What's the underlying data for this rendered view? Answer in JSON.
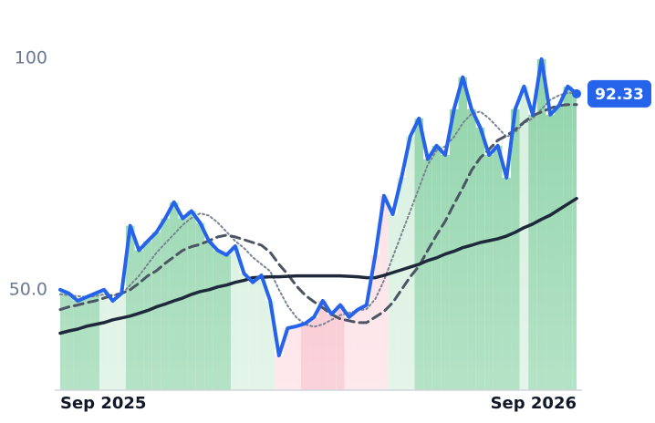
{
  "chart_data": {
    "type": "line",
    "categories": [
      "Sep 2025",
      null,
      null,
      null,
      null,
      null,
      null,
      null,
      null,
      null,
      null,
      null,
      null,
      null,
      null,
      null,
      null,
      null,
      null,
      null,
      null,
      null,
      null,
      null,
      null,
      null,
      null,
      null,
      null,
      null,
      null,
      null,
      null,
      null,
      null,
      null,
      null,
      null,
      null,
      null,
      null,
      null,
      null,
      null,
      null,
      null,
      null,
      null,
      null,
      null,
      null,
      null,
      null,
      null,
      null,
      null,
      null,
      null,
      null,
      "Sep 2026"
    ],
    "series": [
      {
        "color": "#2563eb",
        "style": "solid",
        "width": 4,
        "area": true,
        "values": [
          50,
          49.2,
          47.6,
          48.4,
          49.2,
          50,
          47.6,
          49.2,
          63.8,
          58.5,
          60.5,
          62.4,
          65.4,
          68.9,
          65.4,
          67,
          64.4,
          60.5,
          58.5,
          57.5,
          59.4,
          53.5,
          51.6,
          53.1,
          47.6,
          35.8,
          41.7,
          42.1,
          42.7,
          44.1,
          47.6,
          44.7,
          46.7,
          44.1,
          45.7,
          46.7,
          57.5,
          70.3,
          66.3,
          74.2,
          83.1,
          87,
          78.2,
          81.1,
          79.1,
          89,
          95.9,
          89,
          85,
          79.1,
          81.1,
          74.2,
          89,
          93.9,
          87.8,
          99.8,
          87.8,
          89.8,
          93.9,
          92.33
        ]
      },
      {
        "color": "#7b8494",
        "style": "dotted",
        "width": 2,
        "values": [
          49,
          48.8,
          48.6,
          48.4,
          48.6,
          49,
          48.8,
          49,
          51,
          53,
          55.5,
          58,
          60,
          62,
          64,
          65.5,
          66.5,
          66,
          64.5,
          62.5,
          60.5,
          59,
          57,
          55.5,
          54,
          50,
          46.5,
          44,
          42.5,
          42,
          42.5,
          43.5,
          44.5,
          45,
          45.5,
          45.8,
          48,
          52,
          57,
          62,
          67,
          72,
          77,
          80,
          81,
          83,
          86,
          88,
          88.5,
          87,
          85,
          83,
          84,
          86,
          87,
          89,
          91,
          92,
          92.5,
          92.5
        ]
      },
      {
        "color": "#4b5563",
        "style": "dashed",
        "width": 3,
        "values": [
          45.7,
          46.3,
          46.7,
          47.2,
          47.6,
          48.2,
          48.8,
          49.2,
          50,
          51.4,
          53,
          54.1,
          55.7,
          57.1,
          58.5,
          59.3,
          59.8,
          60.6,
          61.4,
          61.8,
          61.4,
          60.8,
          60.2,
          59.6,
          58.1,
          55.5,
          53.3,
          50.8,
          48.8,
          47.4,
          46.1,
          44.7,
          43.7,
          43.3,
          42.9,
          42.9,
          44.1,
          45.3,
          47.2,
          50,
          52.8,
          55.1,
          58.5,
          61.8,
          64.8,
          68.5,
          72,
          75.8,
          78.5,
          80.3,
          82.3,
          83.3,
          84.6,
          86.2,
          87.6,
          88.4,
          89.2,
          89.8,
          90,
          90
        ]
      },
      {
        "color": "#1e293b",
        "style": "solid",
        "width": 3.5,
        "values": [
          40.6,
          41.1,
          41.5,
          42.1,
          42.5,
          42.9,
          43.5,
          43.9,
          44.3,
          44.9,
          45.5,
          46.3,
          46.9,
          47.6,
          48.2,
          49,
          49.6,
          50,
          50.6,
          51,
          51.6,
          52,
          52.6,
          52.7,
          52.8,
          52.8,
          52.9,
          53,
          53,
          53,
          53,
          53,
          53,
          52.9,
          52.8,
          52.6,
          52.6,
          53.1,
          53.7,
          54.3,
          54.9,
          55.5,
          56.3,
          56.9,
          57.7,
          58.3,
          59.1,
          59.6,
          60.2,
          60.6,
          61,
          61.6,
          62.4,
          63.4,
          64.2,
          65.2,
          66.1,
          67.3,
          68.5,
          69.7
        ]
      }
    ],
    "area_colors": [
      "#8dd3a8",
      "#8dd3a8",
      "#8dd3a8",
      "#8dd3a8",
      "#8dd3a8",
      "#d5efdd",
      "#d5efdd",
      "#d5efdd",
      "#8dd3a8",
      "#8dd3a8",
      "#8dd3a8",
      "#8dd3a8",
      "#8dd3a8",
      "#8dd3a8",
      "#8dd3a8",
      "#8dd3a8",
      "#8dd3a8",
      "#8dd3a8",
      "#8dd3a8",
      "#8dd3a8",
      "#d5efdd",
      "#d5efdd",
      "#d5efdd",
      "#d5efdd",
      "#d5efdd",
      "#fddde3",
      "#fddde3",
      "#fddde3",
      "#f8bcc7",
      "#f8bcc7",
      "#f8bcc7",
      "#f8bcc7",
      "#f8bcc7",
      "#fddde3",
      "#fddde3",
      "#fddde3",
      "#fddde3",
      "#fddde3",
      "#d5efdd",
      "#d5efdd",
      "#d5efdd",
      "#8dd3a8",
      "#8dd3a8",
      "#8dd3a8",
      "#8dd3a8",
      "#8dd3a8",
      "#8dd3a8",
      "#8dd3a8",
      "#8dd3a8",
      "#8dd3a8",
      "#8dd3a8",
      "#8dd3a8",
      "#8dd3a8",
      "#d5efdd",
      "#8dd3a8",
      "#8dd3a8",
      "#8dd3a8",
      "#8dd3a8",
      "#8dd3a8",
      "#8dd3a8"
    ],
    "ylim": [
      28.3,
      104.7
    ],
    "yticks": [
      {
        "value": 50,
        "label": "50.0"
      },
      100
    ],
    "grid": false
  }
}
